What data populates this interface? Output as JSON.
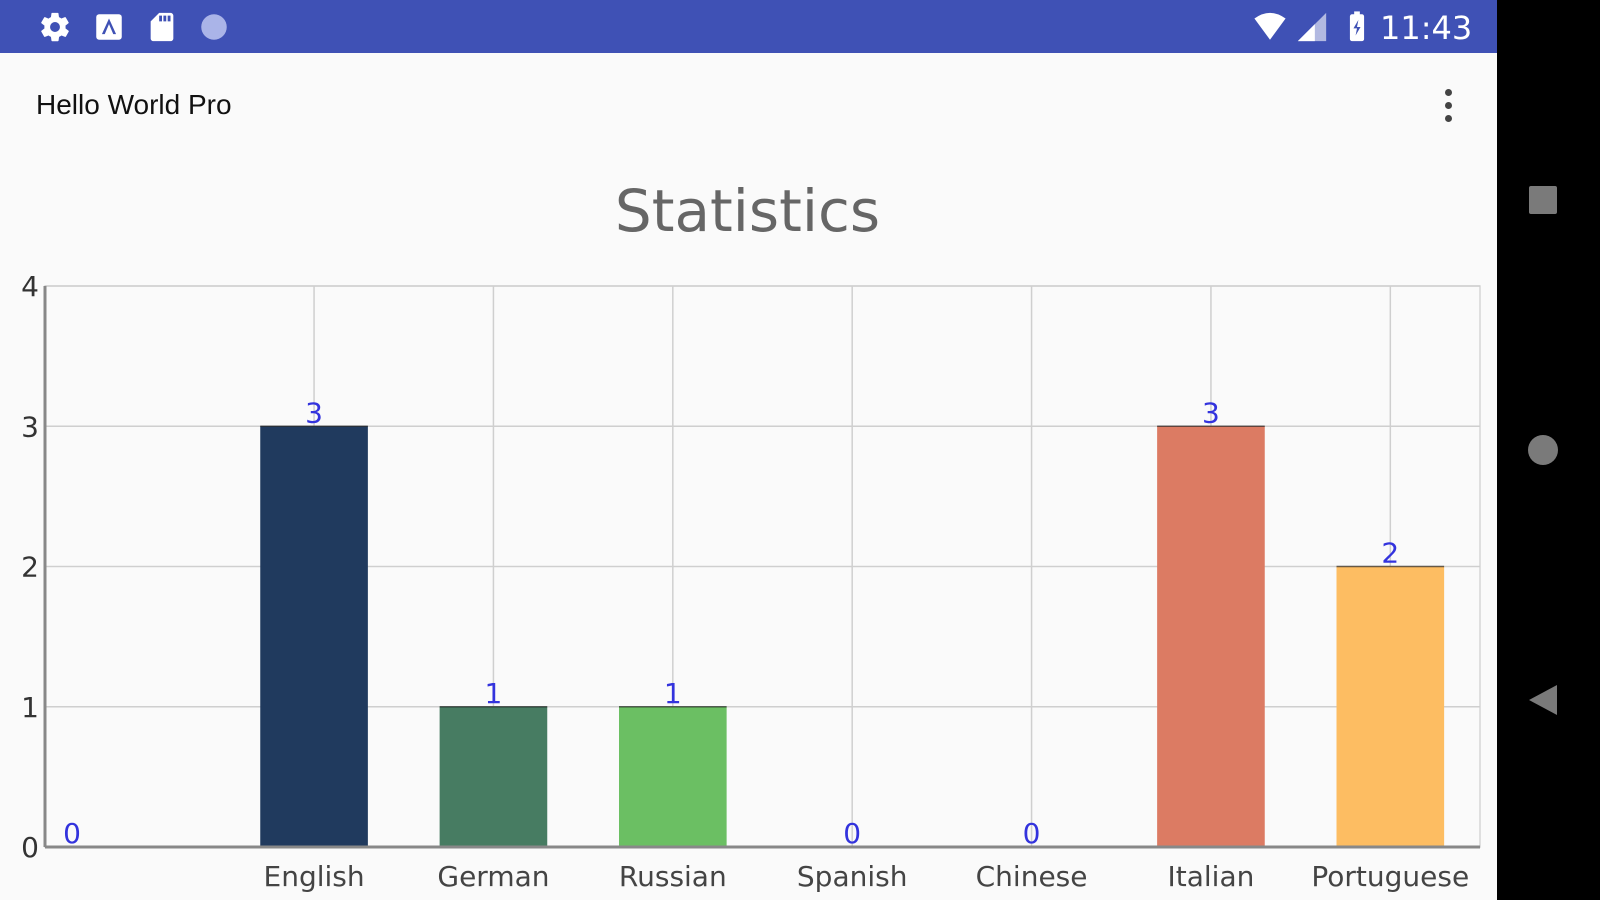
{
  "status_bar": {
    "time": "11:43",
    "left_icons": [
      "settings-icon",
      "store-icon",
      "sd-card-icon",
      "circle-icon"
    ],
    "right_icons": [
      "wifi-icon",
      "cell-signal-icon",
      "battery-icon"
    ],
    "color": "#3f51b5"
  },
  "app_bar": {
    "title": "Hello World Pro",
    "menu_icon": "more-vert-icon"
  },
  "nav_bar": {
    "buttons": [
      "recents-square-icon",
      "home-circle-icon",
      "back-triangle-icon"
    ]
  },
  "chart_data": {
    "type": "bar",
    "title": "Statistics",
    "xlabel": "",
    "ylabel": "",
    "categories": [
      "",
      "English",
      "German",
      "Russian",
      "Spanish",
      "Chinese",
      "Italian",
      "Portuguese"
    ],
    "values": [
      0,
      3,
      1,
      1,
      0,
      0,
      3,
      2
    ],
    "colors": [
      "#203a5e",
      "#203a5e",
      "#477c62",
      "#6bbf63",
      "#203a5e",
      "#203a5e",
      "#dc7b63",
      "#fdbd62"
    ],
    "ylim": [
      0,
      4
    ],
    "yticks": [
      "0",
      "1",
      "2",
      "3",
      "4"
    ],
    "value_label_color": "#3333dd",
    "grid": true
  }
}
